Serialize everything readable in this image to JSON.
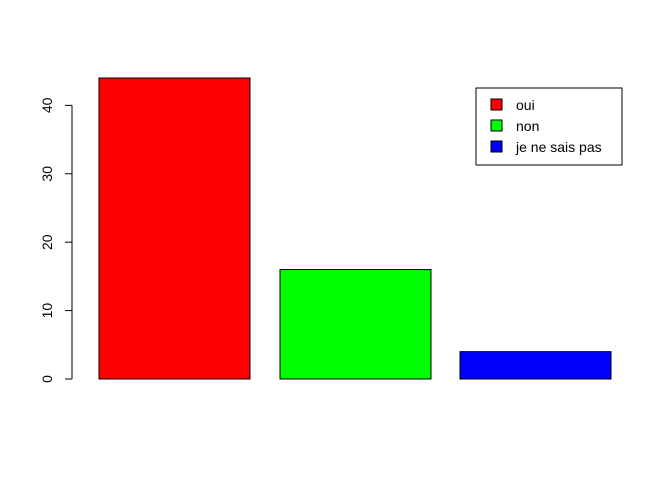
{
  "chart_data": {
    "type": "bar",
    "categories": [
      "oui",
      "non",
      "je ne sais pas"
    ],
    "values": [
      44,
      16,
      4
    ],
    "colors": [
      "#ff0000",
      "#00ff00",
      "#0000ff"
    ],
    "yticks": [
      0,
      10,
      20,
      30,
      40
    ],
    "ylim": [
      0,
      44
    ],
    "title": "",
    "xlabel": "",
    "ylabel": "",
    "legend": {
      "position": "top-right",
      "entries": [
        {
          "label": "oui",
          "color": "#ff0000"
        },
        {
          "label": "non",
          "color": "#00ff00"
        },
        {
          "label": "je ne sais pas",
          "color": "#0000ff"
        }
      ]
    },
    "grid": false
  }
}
